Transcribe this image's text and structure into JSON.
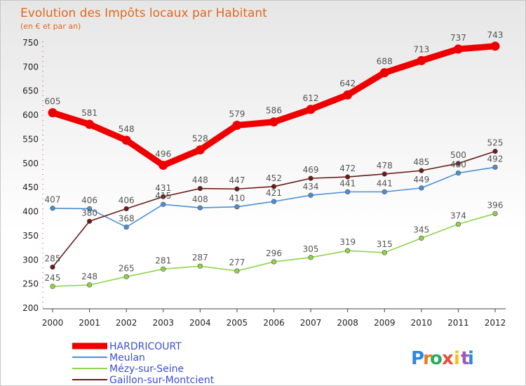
{
  "header": {
    "title": "Evolution des Impôts locaux par Habitant",
    "subtitle": "(en € et par an)"
  },
  "logo": {
    "letters": [
      "P",
      "r",
      "o",
      "x",
      "i",
      "t",
      "i"
    ],
    "colors": [
      "#2e86de",
      "#e67e22",
      "#27ae60",
      "#e74c3c",
      "#f1c40f",
      "#9b59b6",
      "#2e86de"
    ]
  },
  "chart_data": {
    "type": "line",
    "title": "Evolution des Impôts locaux par Habitant",
    "subtitle": "(en € et par an)",
    "x": [
      2000,
      2001,
      2002,
      2003,
      2004,
      2005,
      2006,
      2007,
      2008,
      2009,
      2010,
      2011,
      2012
    ],
    "x_tick_labels": [
      "2000",
      "2001",
      "2002",
      "2003",
      "2004",
      "2005",
      "2006",
      "2007",
      "2008",
      "2009",
      "2010",
      "2011",
      "2012"
    ],
    "ylim": [
      200,
      750
    ],
    "y_ticks": [
      200,
      250,
      300,
      350,
      400,
      450,
      500,
      550,
      600,
      650,
      700,
      750
    ],
    "y_tick_labels": [
      "200",
      "250",
      "300",
      "350",
      "400",
      "450",
      "500",
      "550",
      "600",
      "650",
      "700",
      "750"
    ],
    "grid": false,
    "legend_placement": "bottom-left",
    "series": [
      {
        "name": "HARDRICOURT",
        "color": "#ee0000",
        "values": [
          605,
          581,
          548,
          496,
          528,
          579,
          586,
          612,
          642,
          688,
          713,
          737,
          743
        ]
      },
      {
        "name": "Meulan",
        "color": "#4a90d9",
        "values": [
          407,
          406,
          368,
          415,
          408,
          410,
          421,
          434,
          441,
          441,
          449,
          480,
          492
        ]
      },
      {
        "name": "Mézy-sur-Seine",
        "color": "#8fd44a",
        "values": [
          245,
          248,
          265,
          281,
          287,
          277,
          296,
          305,
          319,
          315,
          345,
          374,
          396
        ]
      },
      {
        "name": "Gaillon-sur-Montcient",
        "color": "#6b1a1a",
        "values": [
          285,
          380,
          406,
          431,
          448,
          447,
          452,
          469,
          472,
          478,
          485,
          500,
          525
        ]
      }
    ],
    "data_labels": [
      [
        "605",
        "581",
        "548",
        "496",
        "528",
        "579",
        "586",
        "612",
        "642",
        "688",
        "713",
        "737",
        "743"
      ],
      [
        "407",
        "406",
        "368",
        "415",
        "408",
        "410",
        "421",
        "434",
        "441",
        "441",
        "449",
        "480",
        "492"
      ],
      [
        "245",
        "248",
        "265",
        "281",
        "287",
        "277",
        "296",
        "305",
        "319",
        "315",
        "345",
        "374",
        "396"
      ],
      [
        "285",
        "380",
        "406",
        "431",
        "448",
        "447",
        "452",
        "469",
        "472",
        "478",
        "485",
        "500",
        "525"
      ]
    ]
  }
}
